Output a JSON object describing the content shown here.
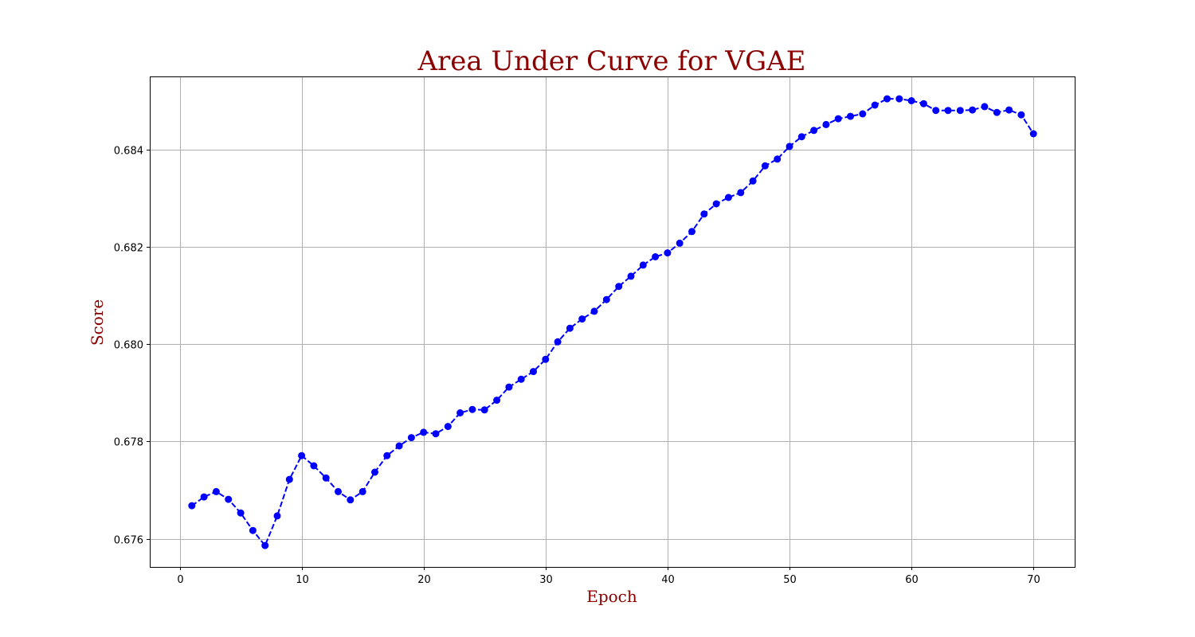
{
  "chart_data": {
    "type": "line",
    "title": "Area Under Curve for VGAE",
    "xlabel": "Epoch",
    "ylabel": "Score",
    "xlim": [
      -2.45,
      73.45
    ],
    "ylim": [
      0.67542,
      0.68551
    ],
    "x_ticks": [
      0,
      10,
      20,
      30,
      40,
      50,
      60,
      70
    ],
    "x_tick_labels": [
      "0",
      "10",
      "20",
      "30",
      "40",
      "50",
      "60",
      "70"
    ],
    "y_ticks": [
      0.676,
      0.678,
      0.68,
      0.682,
      0.684
    ],
    "y_tick_labels": [
      "0.676",
      "0.678",
      "0.680",
      "0.682",
      "0.684"
    ],
    "grid": true,
    "legend": "none",
    "colors": {
      "title": "#8b0000",
      "axis_label": "#8b0000",
      "line": "#0000ff",
      "marker": "#0000ff",
      "grid": "#b0b0b0"
    },
    "line_style": "dashed",
    "marker": "circle",
    "series": [
      {
        "x": [
          1,
          2,
          3,
          4,
          5,
          6,
          7,
          8,
          9,
          10,
          11,
          12,
          13,
          14,
          15,
          16,
          17,
          18,
          19,
          20,
          21,
          22,
          23,
          24,
          25,
          26,
          27,
          28,
          29,
          30,
          31,
          32,
          33,
          34,
          35,
          36,
          37,
          38,
          39,
          40,
          41,
          42,
          43,
          44,
          45,
          46,
          47,
          48,
          49,
          50,
          51,
          52,
          53,
          54,
          55,
          56,
          57,
          58,
          59,
          60,
          61,
          62,
          63,
          64,
          65,
          66,
          67,
          68,
          69,
          70
        ],
        "values": [
          0.67668,
          0.67686,
          0.67697,
          0.67681,
          0.67653,
          0.67617,
          0.67586,
          0.67647,
          0.67722,
          0.67771,
          0.6775,
          0.67725,
          0.67697,
          0.6768,
          0.67697,
          0.67737,
          0.67771,
          0.67791,
          0.67808,
          0.67819,
          0.67816,
          0.67831,
          0.67859,
          0.67866,
          0.67865,
          0.67885,
          0.67912,
          0.67928,
          0.67944,
          0.67969,
          0.68005,
          0.68033,
          0.68052,
          0.68068,
          0.68092,
          0.68119,
          0.6814,
          0.68163,
          0.6818,
          0.68188,
          0.68208,
          0.68232,
          0.68268,
          0.68289,
          0.68302,
          0.68312,
          0.68336,
          0.68367,
          0.68381,
          0.68407,
          0.68427,
          0.6844,
          0.68452,
          0.68464,
          0.68469,
          0.68474,
          0.68492,
          0.68505,
          0.68505,
          0.68501,
          0.68495,
          0.68481,
          0.68481,
          0.68481,
          0.68482,
          0.68489,
          0.68477,
          0.68482,
          0.68472,
          0.68433
        ]
      }
    ]
  }
}
